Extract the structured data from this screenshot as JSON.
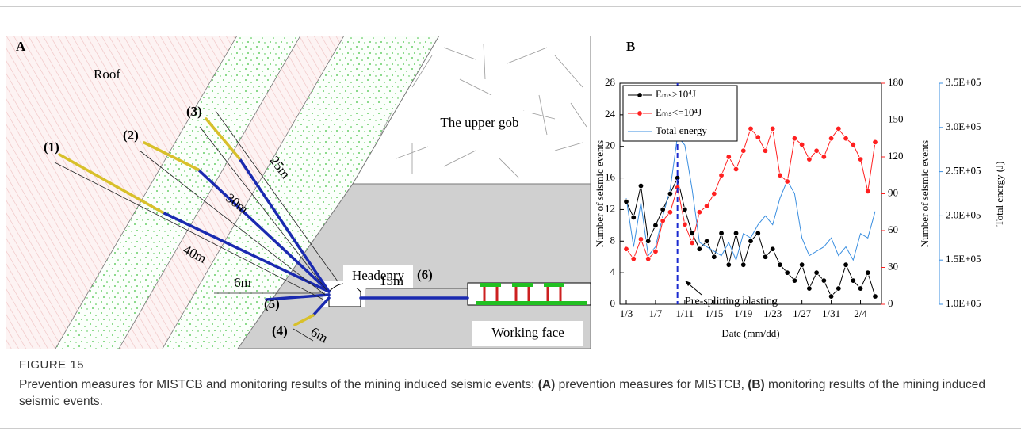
{
  "figure": {
    "panel_a": {
      "label": "A",
      "roof": "Roof",
      "upper_gob": "The upper gob",
      "headentry": "Headenry",
      "working_face": "Working face",
      "boreholes": [
        "(1)",
        "(2)",
        "(3)",
        "(4)",
        "(5)",
        "(6)"
      ],
      "lengths": [
        "40m",
        "30m",
        "25m",
        "6m",
        "6m",
        "15m"
      ]
    },
    "panel_b_label": "B"
  },
  "chart_data": {
    "type": "line",
    "x_label": "Date (mm/dd)",
    "y_label": "Number of seismic events",
    "y2_label": "Number of seismic events",
    "y3_label": "Total energy (J)",
    "annotation": "Pre-splitting blasting",
    "categories": [
      "1/3",
      null,
      null,
      null,
      "1/7",
      null,
      null,
      null,
      "1/11",
      null,
      null,
      null,
      "1/15",
      null,
      null,
      null,
      "1/19",
      null,
      null,
      null,
      "1/23",
      null,
      null,
      null,
      "1/27",
      null,
      null,
      null,
      "1/31",
      null,
      null,
      null,
      "2/4",
      null,
      null
    ],
    "ylim": [
      0,
      28
    ],
    "yticks": [
      0,
      4,
      8,
      12,
      16,
      20,
      24,
      28
    ],
    "y2lim": [
      0,
      180
    ],
    "y2ticks": [
      0,
      30,
      60,
      90,
      120,
      150,
      180
    ],
    "y3lim": [
      100000,
      350000
    ],
    "y3ticks": [
      {
        "value": 100000,
        "label": "1.0E+05"
      },
      {
        "value": 150000,
        "label": "1.5E+05"
      },
      {
        "value": 200000,
        "label": "2.0E+05"
      },
      {
        "value": 250000,
        "label": "2.5E+05"
      },
      {
        "value": 300000,
        "label": "3.0E+05"
      },
      {
        "value": 350000,
        "label": "3.5E+05"
      }
    ],
    "series": [
      {
        "name": "Eₘₛ>10⁴J",
        "color": "#000000",
        "axis": "y",
        "marker": true,
        "values": [
          13,
          11,
          15,
          8,
          10,
          12,
          14,
          16,
          12,
          9,
          7,
          8,
          6,
          9,
          5,
          9,
          5,
          8,
          9,
          6,
          7,
          5,
          4,
          3,
          5,
          2,
          4,
          3,
          1,
          2,
          5,
          3,
          2,
          4,
          1
        ]
      },
      {
        "name": "Eₘₛ<=10⁴J",
        "color": "#ff2020",
        "axis": "y2",
        "marker": true,
        "values": [
          45,
          37,
          53,
          37,
          43,
          68,
          75,
          95,
          65,
          50,
          75,
          80,
          90,
          105,
          120,
          110,
          125,
          143,
          136,
          125,
          143,
          105,
          100,
          135,
          130,
          118,
          125,
          120,
          135,
          143,
          135,
          130,
          118,
          92,
          132
        ]
      },
      {
        "name": "Total energy",
        "color": "#3b8fe0",
        "axis": "y3",
        "marker": false,
        "values": [
          220000,
          165000,
          215000,
          155000,
          165000,
          200000,
          230000,
          290000,
          280000,
          230000,
          170000,
          165000,
          160000,
          155000,
          170000,
          150000,
          180000,
          175000,
          190000,
          200000,
          190000,
          220000,
          240000,
          225000,
          175000,
          155000,
          160000,
          165000,
          175000,
          155000,
          165000,
          150000,
          180000,
          175000,
          205000
        ]
      }
    ]
  },
  "caption": {
    "label": "FIGURE 15",
    "parts": [
      "Prevention measures for MISTCB and monitoring results of the mining induced seismic events: ",
      "(A)",
      " prevention measures for MISTCB, ",
      "(B)",
      " monitoring results of the mining induced seismic events."
    ]
  }
}
